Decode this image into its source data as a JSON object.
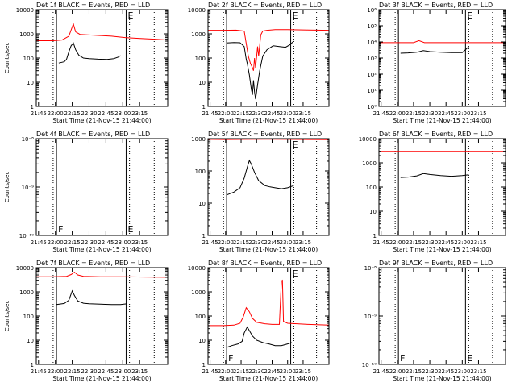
{
  "x_tick_labels": [
    "21:45",
    "22:00",
    "22:15",
    "22:30",
    "22:45",
    "23:00",
    "23:15"
  ],
  "x_tick_values": [
    105,
    120,
    135,
    150,
    165,
    180,
    195
  ],
  "xlim": [
    103,
    220
  ],
  "markers": {
    "dotted": [
      118,
      186,
      208
    ],
    "solid": [
      121,
      183
    ]
  },
  "colors": {
    "events": "#000000",
    "lld": "#ff0000"
  },
  "chart_data": [
    {
      "type": "line",
      "title": "Det 1f BLACK = Events, RED = LLD",
      "xlabel": "Start Time (21-Nov-15 21:44:00)",
      "ylabel": "Counts/sec",
      "y_scale": "log",
      "ylim": [
        1,
        10000
      ],
      "ytick_values": [
        1,
        10,
        100,
        1000,
        10000
      ],
      "ytick_labels": [
        "1",
        "10",
        "100",
        "1000",
        "10000"
      ],
      "letter_left": "",
      "letter_right": "E",
      "series": [
        {
          "name": "Events",
          "color": "#000000",
          "x": [
            123,
            128,
            130,
            132,
            134,
            136,
            138,
            141,
            145,
            150,
            158,
            166,
            172,
            176,
            178
          ],
          "y": [
            62,
            70,
            90,
            180,
            320,
            420,
            220,
            130,
            100,
            95,
            90,
            88,
            95,
            110,
            125
          ]
        },
        {
          "name": "LLD",
          "color": "#ff0000",
          "x": [
            103,
            110,
            118,
            126,
            132,
            136,
            138,
            142,
            150,
            160,
            170,
            182,
            194,
            210,
            220
          ],
          "y": [
            520,
            520,
            520,
            560,
            800,
            2600,
            1200,
            950,
            900,
            850,
            800,
            700,
            650,
            600,
            560
          ]
        }
      ]
    },
    {
      "type": "line",
      "title": "Det 2f BLACK = Events, RED = LLD",
      "xlabel": "Start Time (21-Nov-15 21:44:00)",
      "ylabel": "",
      "y_scale": "log",
      "ylim": [
        1,
        10000
      ],
      "ytick_values": [
        1,
        10,
        100,
        1000,
        10000
      ],
      "ytick_labels": [
        "1",
        "10",
        "100",
        "1000",
        "10000"
      ],
      "letter_left": "",
      "letter_right": "E",
      "series": [
        {
          "name": "Events",
          "color": "#000000",
          "x": [
            121,
            128,
            134,
            138,
            140,
            141,
            143,
            145,
            146,
            147,
            148,
            149,
            151,
            153,
            156,
            160,
            166,
            172,
            178,
            182,
            186
          ],
          "y": [
            420,
            440,
            430,
            300,
            90,
            60,
            20,
            5,
            3,
            12,
            4,
            2,
            8,
            30,
            120,
            220,
            320,
            300,
            280,
            350,
            500
          ]
        },
        {
          "name": "LLD",
          "color": "#ff0000",
          "x": [
            103,
            118,
            130,
            138,
            140,
            142,
            144,
            146,
            147,
            148,
            149,
            151,
            152,
            154,
            156,
            160,
            168,
            180,
            200,
            220
          ],
          "y": [
            1400,
            1400,
            1420,
            1300,
            400,
            120,
            60,
            40,
            30,
            100,
            40,
            300,
            120,
            900,
            1300,
            1400,
            1500,
            1500,
            1450,
            1400
          ]
        }
      ]
    },
    {
      "type": "line",
      "title": "Det 3f BLACK = Events, RED = LLD",
      "xlabel": "Start Time (21-Nov-15 21:44:00)",
      "ylabel": "",
      "y_scale": "log",
      "ylim": [
        1,
        1000000
      ],
      "ytick_values": [
        1,
        10,
        100,
        1000,
        10000,
        100000,
        1000000
      ],
      "ytick_labels": [
        "10⁰",
        "10¹",
        "10²",
        "10³",
        "10⁴",
        "10⁵",
        "10⁶"
      ],
      "letter_left": "",
      "letter_right": "E",
      "series": [
        {
          "name": "Events",
          "color": "#000000",
          "x": [
            123,
            130,
            138,
            144,
            150,
            160,
            170,
            180,
            186
          ],
          "y": [
            2000,
            2100,
            2300,
            2900,
            2500,
            2300,
            2200,
            2200,
            5000
          ]
        },
        {
          "name": "LLD",
          "color": "#ff0000",
          "x": [
            103,
            120,
            135,
            140,
            145,
            160,
            180,
            200,
            220
          ],
          "y": [
            9000,
            9000,
            9000,
            12000,
            9000,
            9000,
            9000,
            9000,
            9000
          ]
        }
      ]
    },
    {
      "type": "line",
      "title": "Det 4f BLACK = Events, RED = LLD",
      "xlabel": "Start Time (21-Nov-15 21:44:00)",
      "ylabel": "Counts/sec",
      "y_scale": "log",
      "ylim": [
        1e-10,
        1e-08
      ],
      "ytick_values": [
        1e-10,
        1e-09,
        1e-08
      ],
      "ytick_labels": [
        "10⁻¹⁰",
        "10⁻⁹",
        "10⁻⁸"
      ],
      "letter_left": "F",
      "letter_right": "E",
      "series": []
    },
    {
      "type": "line",
      "title": "Det 5f BLACK = Events, RED = LLD",
      "xlabel": "Start Time (21-Nov-15 21:44:00)",
      "ylabel": "",
      "y_scale": "log",
      "ylim": [
        1,
        1000
      ],
      "ytick_values": [
        1,
        10,
        100,
        1000
      ],
      "ytick_labels": [
        "1",
        "10",
        "100",
        "1000"
      ],
      "letter_left": "",
      "letter_right": "E",
      "series": [
        {
          "name": "Events",
          "color": "#000000",
          "x": [
            121,
            128,
            134,
            138,
            141,
            143,
            145,
            148,
            152,
            158,
            163,
            168,
            174,
            180,
            186
          ],
          "y": [
            18,
            22,
            30,
            60,
            130,
            210,
            160,
            90,
            50,
            35,
            32,
            30,
            28,
            30,
            35
          ]
        },
        {
          "name": "LLD",
          "color": "#ff0000",
          "x": [
            103,
            120,
            140,
            160,
            180,
            200,
            220
          ],
          "y": [
            950,
            940,
            950,
            960,
            950,
            940,
            930
          ]
        }
      ]
    },
    {
      "type": "line",
      "title": "Det 6f BLACK = Events, RED = LLD",
      "xlabel": "Start Time (21-Nov-15 21:44:00)",
      "ylabel": "",
      "y_scale": "log",
      "ylim": [
        1,
        10000
      ],
      "ytick_values": [
        1,
        10,
        100,
        1000,
        10000
      ],
      "ytick_labels": [
        "1",
        "10",
        "100",
        "1000",
        "10000"
      ],
      "letter_left": "",
      "letter_right": "",
      "series": [
        {
          "name": "Events",
          "color": "#000000",
          "x": [
            123,
            130,
            138,
            144,
            150,
            160,
            170,
            180,
            186
          ],
          "y": [
            250,
            260,
            290,
            360,
            330,
            300,
            280,
            300,
            320
          ]
        },
        {
          "name": "LLD",
          "color": "#ff0000",
          "x": [
            103,
            140,
            180,
            220
          ],
          "y": [
            3000,
            3000,
            3000,
            3000
          ]
        }
      ]
    },
    {
      "type": "line",
      "title": "Det 7f BLACK = Events, RED = LLD",
      "xlabel": "Start Time (21-Nov-15 21:44:00)",
      "ylabel": "Counts/sec",
      "y_scale": "log",
      "ylim": [
        1,
        10000
      ],
      "ytick_values": [
        1,
        10,
        100,
        1000,
        10000
      ],
      "ytick_labels": [
        "1",
        "10",
        "100",
        "1000",
        "10000"
      ],
      "letter_left": "",
      "letter_right": "",
      "series": [
        {
          "name": "Events",
          "color": "#000000",
          "x": [
            121,
            128,
            132,
            135,
            137,
            140,
            145,
            150,
            160,
            170,
            178,
            184
          ],
          "y": [
            300,
            330,
            450,
            1100,
            700,
            420,
            340,
            320,
            310,
            300,
            300,
            320
          ]
        },
        {
          "name": "LLD",
          "color": "#ff0000",
          "x": [
            103,
            118,
            130,
            134,
            137,
            140,
            145,
            160,
            180,
            200,
            220
          ],
          "y": [
            4200,
            4200,
            4400,
            5200,
            6500,
            5000,
            4400,
            4200,
            4200,
            4100,
            4000
          ]
        }
      ]
    },
    {
      "type": "line",
      "title": "Det 8f BLACK = Events, RED = LLD",
      "xlabel": "Start Time (21-Nov-15 21:44:00)",
      "ylabel": "",
      "y_scale": "log",
      "ylim": [
        1,
        10000
      ],
      "ytick_values": [
        1,
        10,
        100,
        1000,
        10000
      ],
      "ytick_labels": [
        "1",
        "10",
        "100",
        "1000",
        "10000"
      ],
      "letter_left": "F",
      "letter_right": "E",
      "series": [
        {
          "name": "Events",
          "color": "#000000",
          "x": [
            121,
            126,
            132,
            136,
            138,
            141,
            143,
            146,
            150,
            156,
            162,
            168,
            174,
            180,
            184
          ],
          "y": [
            5,
            6,
            7,
            9,
            20,
            35,
            25,
            15,
            10,
            8,
            7,
            6,
            6,
            7,
            8
          ]
        },
        {
          "name": "LLD",
          "color": "#ff0000",
          "x": [
            103,
            118,
            128,
            134,
            137,
            140,
            143,
            146,
            150,
            158,
            165,
            172,
            174,
            175,
            176,
            180,
            200,
            220
          ],
          "y": [
            40,
            40,
            42,
            50,
            90,
            220,
            150,
            80,
            55,
            48,
            45,
            45,
            2800,
            3000,
            60,
            50,
            45,
            42
          ]
        }
      ]
    },
    {
      "type": "line",
      "title": "Det 9f BLACK = Events, RED = LLD",
      "xlabel": "Start Time (21-Nov-15 21:44:00)",
      "ylabel": "",
      "y_scale": "log",
      "ylim": [
        1e-10,
        1e-08
      ],
      "ytick_values": [
        1e-10,
        1e-09,
        1e-08
      ],
      "ytick_labels": [
        "10⁻¹⁰",
        "10⁻⁹",
        "10⁻⁸"
      ],
      "letter_left": "F",
      "letter_right": "E",
      "series": []
    }
  ]
}
